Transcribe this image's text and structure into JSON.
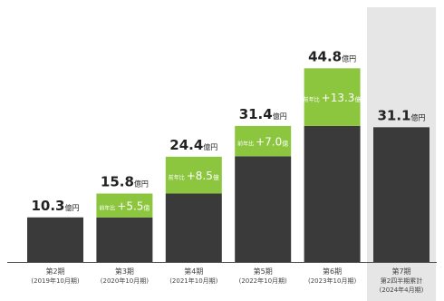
{
  "chart_data": {
    "type": "bar",
    "title": "",
    "xlabel": "",
    "ylabel": "",
    "ylim": [
      0,
      50
    ],
    "grid": false,
    "legend": "none",
    "categories": [
      {
        "line1": "第2期",
        "line2": "(2019年10月期)"
      },
      {
        "line1": "第3期",
        "line2": "(2020年10月期)"
      },
      {
        "line1": "第4期",
        "line2": "(2021年10月期)"
      },
      {
        "line1": "第5期",
        "line2": "(2022年10月期)"
      },
      {
        "line1": "第6期",
        "line2": "(2023年10月期)"
      },
      {
        "line1": "第7期",
        "line2": "第2四半期累計",
        "line3": "(2024年4月期)"
      }
    ],
    "series": [
      {
        "values": [
          10.3,
          10.3,
          15.8,
          24.4,
          31.4,
          31.1
        ]
      },
      {
        "values": [
          0,
          5.5,
          8.5,
          7.0,
          13.3,
          0
        ]
      }
    ],
    "totals": [
      {
        "value": "10.3",
        "unit": "億円"
      },
      {
        "value": "15.8",
        "unit": "億円"
      },
      {
        "value": "24.4",
        "unit": "億円"
      },
      {
        "value": "31.4",
        "unit": "億円"
      },
      {
        "value": "44.8",
        "unit": "億円"
      },
      {
        "value": "31.1",
        "unit": "億円"
      }
    ],
    "increments": [
      null,
      {
        "prefix": "前年比",
        "value": "+5.5",
        "unit": "億"
      },
      {
        "prefix": "前年比",
        "value": "+8.5",
        "unit": "億"
      },
      {
        "prefix": "前年比",
        "value": "+7.0",
        "unit": "億"
      },
      {
        "prefix": "前年比",
        "value": "+13.3",
        "unit": "億"
      },
      null
    ],
    "highlight_index": 5,
    "colors": {
      "base": "#3a3a3a",
      "increase": "#8cc63f",
      "highlight_bg": "#e6e6e6",
      "axis": "#555555",
      "text": "#222222",
      "small_text": "#444444"
    }
  }
}
